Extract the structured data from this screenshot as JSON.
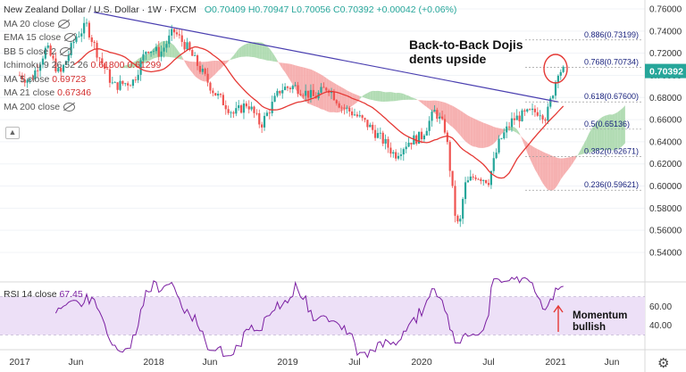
{
  "header": {
    "symbol": "New Zealand Dollar / U.S. Dollar · 1W · FXCM",
    "ohlc": "O0.70409 H0.70947 L0.70056 C0.70392 +0.00042 (+0.06%)"
  },
  "indicators": [
    {
      "label": "MA 20 close",
      "value": ""
    },
    {
      "label": "EMA 15 close",
      "value": ""
    },
    {
      "label": "BB 5 close 2",
      "value": ""
    },
    {
      "label": "Ichimoku 9 26 52 26",
      "value": "0.61800  0.61299"
    },
    {
      "label": "MA 5 close",
      "value": "0.69723"
    },
    {
      "label": "MA 21 close",
      "value": "0.67346"
    },
    {
      "label": "MA 200 close",
      "value": ""
    }
  ],
  "annotations": {
    "main": [
      "Back-to-Back Dojis",
      "dents upside"
    ],
    "momentum": [
      "Momentum",
      "bullish"
    ]
  },
  "rsi": {
    "label": "RSI 14 close",
    "value": "67.45"
  },
  "price_tag": "0.70392",
  "colors": {
    "up": "#26a69a",
    "down": "#ef5350",
    "trendline": "#4a3fb0",
    "ma21": "#e53935",
    "cloud_bear": "#f5a3a3",
    "cloud_bull": "#a5d6a7",
    "rsi_line": "#7b1fa2",
    "rsi_band": "#ede0f7"
  },
  "chart_data": {
    "type": "candlestick",
    "y_ticks": [
      "0.76000",
      "0.74000",
      "0.72000",
      "0.70000",
      "0.68000",
      "0.66000",
      "0.64000",
      "0.62000",
      "0.60000",
      "0.58000",
      "0.56000",
      "0.54000"
    ],
    "ylim": [
      0.54,
      0.762
    ],
    "x_ticks": [
      "2017",
      "Jun",
      "2018",
      "Jun",
      "2019",
      "Jul",
      "2020",
      "Jul",
      "2021",
      "Jun"
    ],
    "fib_levels": [
      {
        "label": "0.886(0.73199)",
        "value": 0.73199
      },
      {
        "label": "0.768(0.70734)",
        "value": 0.70734
      },
      {
        "label": "0.618(0.67600)",
        "value": 0.676
      },
      {
        "label": "0.5(0.65136)",
        "value": 0.65136
      },
      {
        "label": "0.382(0.62671)",
        "value": 0.62671
      },
      {
        "label": "0.236(0.59621)",
        "value": 0.59621
      }
    ],
    "last_close": 0.70392,
    "rsi_ticks": [
      "60.00",
      "40.00"
    ],
    "rsi_last": 67.45
  }
}
